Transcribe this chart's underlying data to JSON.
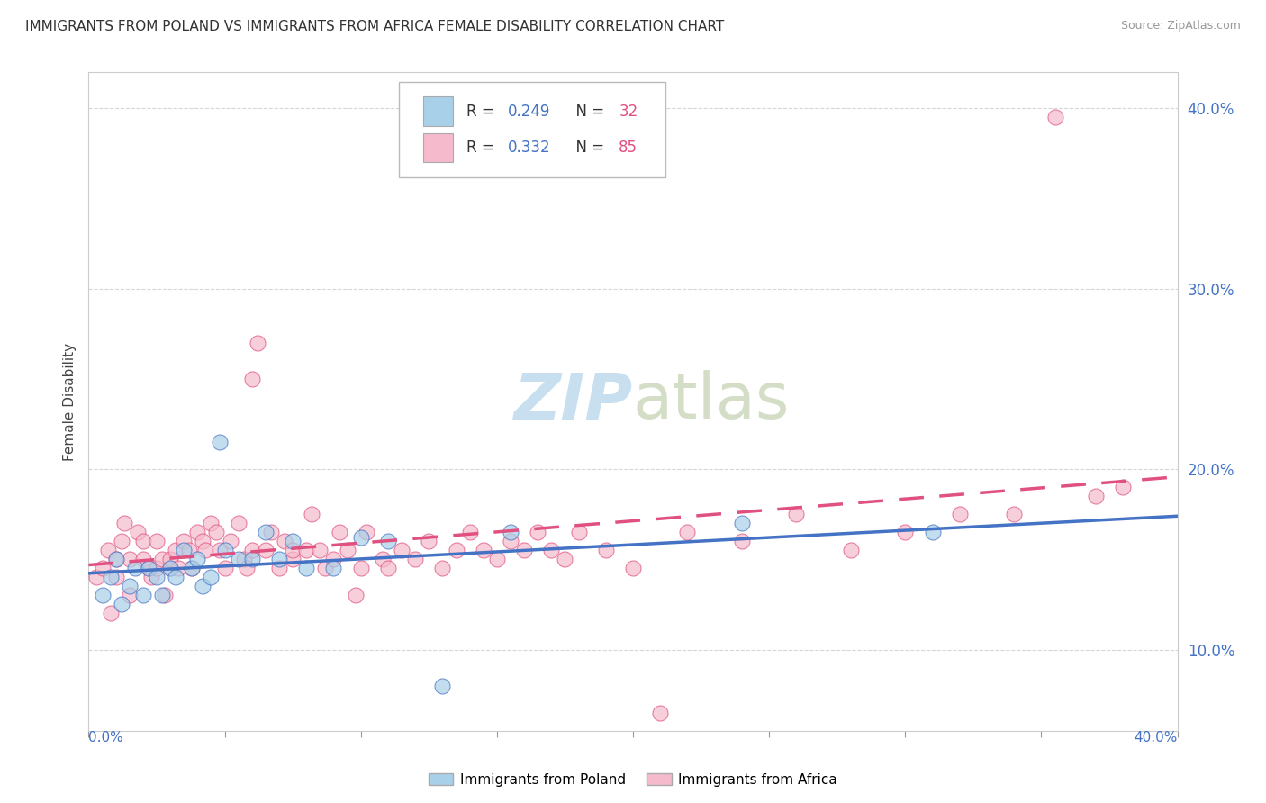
{
  "title": "IMMIGRANTS FROM POLAND VS IMMIGRANTS FROM AFRICA FEMALE DISABILITY CORRELATION CHART",
  "source": "Source: ZipAtlas.com",
  "ylabel": "Female Disability",
  "xlim": [
    0.0,
    0.4
  ],
  "ylim": [
    0.055,
    0.42
  ],
  "legend1_r": "0.249",
  "legend1_n": "32",
  "legend2_r": "0.332",
  "legend2_n": "85",
  "poland_color": "#A8D0E8",
  "africa_color": "#F5BBCC",
  "poland_line_color": "#4472C4",
  "africa_line_color": "#E05080",
  "watermark_color": "#C8DFF0",
  "right_tick_color": "#4472C4",
  "grid_color": "#CCCCCC",
  "ylabel_right_vals": [
    0.1,
    0.2,
    0.3,
    0.4
  ],
  "poland_x": [
    0.005,
    0.008,
    0.01,
    0.012,
    0.015,
    0.017,
    0.02,
    0.022,
    0.025,
    0.027,
    0.03,
    0.032,
    0.035,
    0.038,
    0.04,
    0.042,
    0.045,
    0.048,
    0.05,
    0.055,
    0.06,
    0.065,
    0.07,
    0.075,
    0.08,
    0.09,
    0.1,
    0.11,
    0.13,
    0.155,
    0.24,
    0.31
  ],
  "poland_y": [
    0.13,
    0.14,
    0.15,
    0.125,
    0.135,
    0.145,
    0.13,
    0.145,
    0.14,
    0.13,
    0.145,
    0.14,
    0.155,
    0.145,
    0.15,
    0.135,
    0.14,
    0.215,
    0.155,
    0.15,
    0.15,
    0.165,
    0.15,
    0.16,
    0.145,
    0.145,
    0.162,
    0.16,
    0.08,
    0.165,
    0.17,
    0.165
  ],
  "africa_x": [
    0.003,
    0.005,
    0.007,
    0.008,
    0.01,
    0.01,
    0.012,
    0.013,
    0.015,
    0.015,
    0.018,
    0.02,
    0.02,
    0.022,
    0.023,
    0.025,
    0.025,
    0.027,
    0.028,
    0.03,
    0.03,
    0.032,
    0.033,
    0.035,
    0.037,
    0.038,
    0.04,
    0.042,
    0.043,
    0.045,
    0.047,
    0.048,
    0.05,
    0.052,
    0.055,
    0.057,
    0.058,
    0.06,
    0.06,
    0.062,
    0.065,
    0.067,
    0.07,
    0.072,
    0.075,
    0.075,
    0.08,
    0.082,
    0.085,
    0.087,
    0.09,
    0.092,
    0.095,
    0.098,
    0.1,
    0.102,
    0.108,
    0.11,
    0.115,
    0.12,
    0.125,
    0.13,
    0.135,
    0.14,
    0.145,
    0.15,
    0.155,
    0.16,
    0.165,
    0.17,
    0.175,
    0.18,
    0.19,
    0.2,
    0.21,
    0.22,
    0.24,
    0.26,
    0.28,
    0.3,
    0.32,
    0.34,
    0.355,
    0.37,
    0.38
  ],
  "africa_y": [
    0.14,
    0.145,
    0.155,
    0.12,
    0.14,
    0.15,
    0.16,
    0.17,
    0.13,
    0.15,
    0.165,
    0.15,
    0.16,
    0.145,
    0.14,
    0.145,
    0.16,
    0.15,
    0.13,
    0.145,
    0.15,
    0.155,
    0.145,
    0.16,
    0.155,
    0.145,
    0.165,
    0.16,
    0.155,
    0.17,
    0.165,
    0.155,
    0.145,
    0.16,
    0.17,
    0.15,
    0.145,
    0.155,
    0.25,
    0.27,
    0.155,
    0.165,
    0.145,
    0.16,
    0.15,
    0.155,
    0.155,
    0.175,
    0.155,
    0.145,
    0.15,
    0.165,
    0.155,
    0.13,
    0.145,
    0.165,
    0.15,
    0.145,
    0.155,
    0.15,
    0.16,
    0.145,
    0.155,
    0.165,
    0.155,
    0.15,
    0.16,
    0.155,
    0.165,
    0.155,
    0.15,
    0.165,
    0.155,
    0.145,
    0.065,
    0.165,
    0.16,
    0.175,
    0.155,
    0.165,
    0.175,
    0.175,
    0.395,
    0.185,
    0.19
  ]
}
